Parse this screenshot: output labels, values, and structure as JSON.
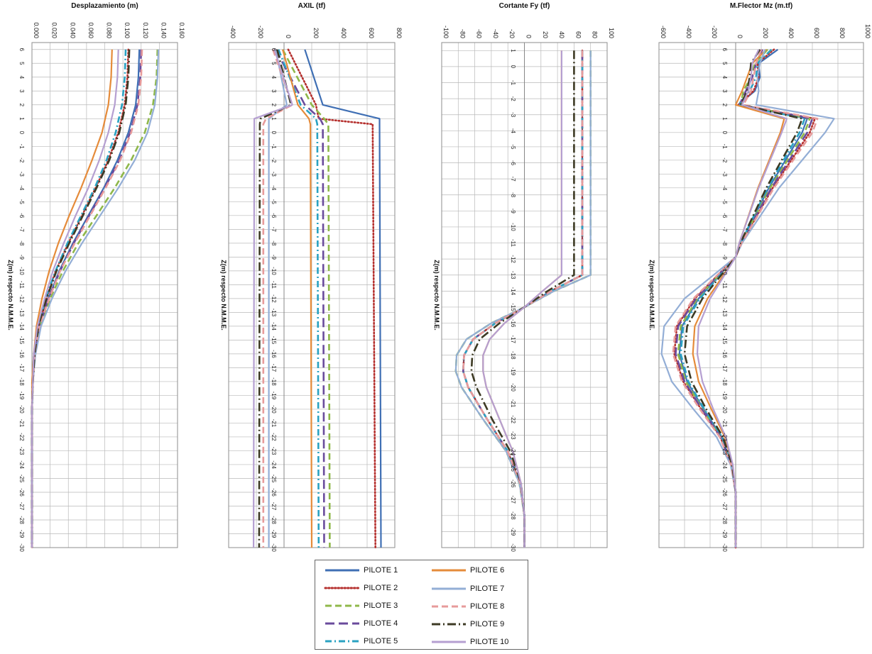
{
  "axis_label_z": "Z(m) respecto N.M.M.E.",
  "chart_data": [
    {
      "type": "line",
      "title": "Desplazamiento (m)",
      "xlabel": "Desplazamiento (m)",
      "ylabel": "Z(m) respecto N.M.M.E.",
      "xlim": [
        0,
        0.16
      ],
      "xticks": [
        "0.000",
        "0.020",
        "0.040",
        "0.060",
        "0.080",
        "0.100",
        "0.120",
        "0.140",
        "0.160"
      ],
      "z": [
        6,
        4,
        2,
        0,
        -2,
        -4,
        -6,
        -8,
        -10,
        -12,
        -14,
        -16,
        -18,
        -20,
        -24,
        -30
      ],
      "series": [
        {
          "name": "PILOTE 1",
          "values": [
            0.118,
            0.117,
            0.114,
            0.106,
            0.094,
            0.079,
            0.062,
            0.045,
            0.03,
            0.018,
            0.008,
            0.003,
            0.001,
            0.0,
            0.0,
            0.0
          ]
        },
        {
          "name": "PILOTE 2",
          "values": [
            0.106,
            0.105,
            0.102,
            0.095,
            0.084,
            0.07,
            0.055,
            0.04,
            0.026,
            0.016,
            0.007,
            0.003,
            0.001,
            0.0,
            0.0,
            0.0
          ]
        },
        {
          "name": "PILOTE 3",
          "values": [
            0.138,
            0.137,
            0.133,
            0.124,
            0.109,
            0.091,
            0.071,
            0.051,
            0.034,
            0.02,
            0.009,
            0.003,
            0.001,
            0.0,
            0.0,
            0.0
          ]
        },
        {
          "name": "PILOTE 4",
          "values": [
            0.12,
            0.119,
            0.116,
            0.108,
            0.096,
            0.08,
            0.063,
            0.046,
            0.031,
            0.018,
            0.008,
            0.003,
            0.001,
            0.0,
            0.0,
            0.0
          ]
        },
        {
          "name": "PILOTE 5",
          "values": [
            0.103,
            0.102,
            0.099,
            0.092,
            0.082,
            0.069,
            0.054,
            0.039,
            0.026,
            0.015,
            0.007,
            0.002,
            0.001,
            0.0,
            0.0,
            0.0
          ]
        },
        {
          "name": "PILOTE 6",
          "values": [
            0.088,
            0.087,
            0.084,
            0.077,
            0.066,
            0.054,
            0.041,
            0.029,
            0.019,
            0.011,
            0.005,
            0.002,
            0.0,
            0.0,
            0.0,
            0.0
          ]
        },
        {
          "name": "PILOTE 7",
          "values": [
            0.139,
            0.138,
            0.135,
            0.127,
            0.113,
            0.095,
            0.075,
            0.055,
            0.037,
            0.022,
            0.01,
            0.004,
            0.001,
            0.0,
            0.0,
            0.0
          ]
        },
        {
          "name": "PILOTE 8",
          "values": [
            0.121,
            0.12,
            0.117,
            0.109,
            0.097,
            0.081,
            0.064,
            0.047,
            0.031,
            0.019,
            0.008,
            0.003,
            0.001,
            0.0,
            0.0,
            0.0
          ]
        },
        {
          "name": "PILOTE 9",
          "values": [
            0.107,
            0.106,
            0.103,
            0.096,
            0.085,
            0.071,
            0.056,
            0.041,
            0.027,
            0.016,
            0.007,
            0.003,
            0.001,
            0.0,
            0.0,
            0.0
          ]
        },
        {
          "name": "PILOTE 10",
          "values": [
            0.095,
            0.094,
            0.091,
            0.084,
            0.074,
            0.062,
            0.048,
            0.035,
            0.023,
            0.014,
            0.006,
            0.002,
            0.001,
            0.0,
            0.0,
            0.0
          ]
        }
      ]
    },
    {
      "type": "line",
      "title": "AXIL (tf)",
      "xlabel": "AXIL (tf)",
      "ylabel": "Z(m) respecto N.M.M.E.",
      "xlim": [
        -400,
        800
      ],
      "xticks": [
        "-400",
        "-200",
        "0",
        "200",
        "400",
        "600",
        "800"
      ],
      "z": [
        6,
        2,
        1,
        0.6,
        -30
      ],
      "series": [
        {
          "name": "PILOTE 1",
          "values": [
            150,
            280,
            690,
            690,
            700
          ]
        },
        {
          "name": "PILOTE 2",
          "values": [
            30,
            230,
            250,
            640,
            660
          ]
        },
        {
          "name": "PILOTE 3",
          "values": [
            -10,
            200,
            290,
            320,
            330
          ]
        },
        {
          "name": "PILOTE 4",
          "values": [
            -60,
            150,
            260,
            280,
            290
          ]
        },
        {
          "name": "PILOTE 5",
          "values": [
            -40,
            120,
            230,
            240,
            250
          ]
        },
        {
          "name": "PILOTE 6",
          "values": [
            -10,
            100,
            180,
            190,
            200
          ]
        },
        {
          "name": "PILOTE 7",
          "values": [
            -60,
            20,
            -110,
            -110,
            -110
          ]
        },
        {
          "name": "PILOTE 8",
          "values": [
            -80,
            60,
            -130,
            -150,
            -150
          ]
        },
        {
          "name": "PILOTE 9",
          "values": [
            -50,
            50,
            -170,
            -175,
            -180
          ]
        },
        {
          "name": "PILOTE 10",
          "values": [
            -70,
            60,
            -215,
            -215,
            -220
          ]
        }
      ]
    },
    {
      "type": "line",
      "title": "Cortante Fy (tf)",
      "xlabel": "Cortante Fy (tf)",
      "ylabel": "Z(m) respecto N.M.M.E.",
      "xlim": [
        -100,
        100
      ],
      "xticks": [
        "-100",
        "-80",
        "-60",
        "-40",
        "-20",
        "0",
        "20",
        "40",
        "60",
        "80",
        "100"
      ],
      "zticks": [
        "1",
        "0",
        "-1",
        "-2",
        "-3",
        "-4",
        "-5",
        "-6",
        "-7",
        "-8",
        "-9",
        "-10",
        "-11",
        "-12",
        "-13",
        "-14",
        "-15",
        "-16",
        "-17",
        "-18",
        "-19",
        "-20",
        "-21",
        "-22",
        "-23",
        "-24",
        "-25",
        "-26",
        "-27",
        "-28",
        "-29",
        "-30"
      ],
      "z": [
        1,
        -13,
        -14,
        -15,
        -16,
        -17,
        -18,
        -19,
        -20,
        -22,
        -24,
        -26,
        -28,
        -30
      ],
      "series": [
        {
          "name": "PILOTE 1",
          "values": [
            70,
            70,
            32,
            0,
            -35,
            -62,
            -73,
            -74,
            -68,
            -45,
            -20,
            -5,
            0,
            0
          ]
        },
        {
          "name": "PILOTE 2",
          "values": [
            70,
            70,
            32,
            0,
            -35,
            -62,
            -73,
            -74,
            -68,
            -45,
            -20,
            -5,
            0,
            0
          ]
        },
        {
          "name": "PILOTE 3",
          "values": [
            80,
            80,
            36,
            0,
            -40,
            -70,
            -82,
            -83,
            -76,
            -50,
            -22,
            -6,
            0,
            0
          ]
        },
        {
          "name": "PILOTE 4",
          "values": [
            70,
            70,
            32,
            0,
            -35,
            -62,
            -73,
            -74,
            -68,
            -45,
            -20,
            -5,
            0,
            0
          ]
        },
        {
          "name": "PILOTE 5",
          "values": [
            70,
            70,
            32,
            0,
            -35,
            -62,
            -73,
            -74,
            -68,
            -45,
            -20,
            -5,
            0,
            0
          ]
        },
        {
          "name": "PILOTE 6",
          "values": [
            45,
            45,
            22,
            0,
            -24,
            -42,
            -50,
            -50,
            -46,
            -30,
            -14,
            -4,
            0,
            0
          ]
        },
        {
          "name": "PILOTE 7",
          "values": [
            80,
            80,
            36,
            0,
            -40,
            -70,
            -82,
            -83,
            -76,
            -50,
            -22,
            -6,
            0,
            0
          ]
        },
        {
          "name": "PILOTE 8",
          "values": [
            70,
            70,
            32,
            0,
            -35,
            -62,
            -73,
            -74,
            -68,
            -45,
            -20,
            -5,
            0,
            0
          ]
        },
        {
          "name": "PILOTE 9",
          "values": [
            60,
            60,
            28,
            0,
            -30,
            -54,
            -63,
            -64,
            -58,
            -39,
            -17,
            -4,
            0,
            0
          ]
        },
        {
          "name": "PILOTE 10",
          "values": [
            45,
            45,
            22,
            0,
            -24,
            -42,
            -50,
            -50,
            -46,
            -30,
            -14,
            -4,
            0,
            0
          ]
        }
      ]
    },
    {
      "type": "line",
      "title": "M.Flector Mz (m.tf)",
      "xlabel": "M.Flector Mz (m.tf)",
      "ylabel": "Z(m) respecto N.M.M.E.",
      "xlim": [
        -600,
        1000
      ],
      "xticks": [
        "-600",
        "-400",
        "-200",
        "0",
        "200",
        "400",
        "600",
        "800",
        "1000"
      ],
      "z": [
        6,
        5,
        4,
        3,
        2,
        1,
        0,
        -4,
        -8,
        -9,
        -12,
        -14,
        -16,
        -18,
        -20,
        -22,
        -24,
        -26,
        -28,
        -30
      ],
      "series": [
        {
          "name": "PILOTE 1",
          "values": [
            330,
            180,
            190,
            150,
            20,
            560,
            520,
            260,
            40,
            0,
            -290,
            -420,
            -440,
            -380,
            -250,
            -110,
            -30,
            0,
            0,
            0
          ]
        },
        {
          "name": "PILOTE 2",
          "values": [
            300,
            170,
            180,
            140,
            20,
            620,
            580,
            290,
            45,
            0,
            -320,
            -460,
            -480,
            -410,
            -270,
            -120,
            -35,
            0,
            0,
            0
          ]
        },
        {
          "name": "PILOTE 3",
          "values": [
            250,
            150,
            120,
            60,
            40,
            580,
            540,
            270,
            40,
            0,
            -300,
            -430,
            -450,
            -390,
            -260,
            -115,
            -32,
            0,
            0,
            0
          ]
        },
        {
          "name": "PILOTE 4",
          "values": [
            210,
            160,
            130,
            80,
            30,
            600,
            560,
            280,
            42,
            0,
            -310,
            -450,
            -470,
            -400,
            -265,
            -118,
            -34,
            0,
            0,
            0
          ]
        },
        {
          "name": "PILOTE 5",
          "values": [
            280,
            170,
            160,
            110,
            20,
            540,
            500,
            250,
            38,
            0,
            -280,
            -410,
            -430,
            -370,
            -245,
            -108,
            -30,
            0,
            0,
            0
          ]
        },
        {
          "name": "PILOTE 6",
          "values": [
            240,
            130,
            90,
            50,
            0,
            380,
            350,
            175,
            28,
            0,
            -220,
            -320,
            -335,
            -290,
            -190,
            -85,
            -24,
            0,
            0,
            0
          ]
        },
        {
          "name": "PILOTE 7",
          "values": [
            230,
            190,
            170,
            180,
            160,
            770,
            700,
            340,
            50,
            0,
            -400,
            -560,
            -580,
            -500,
            -330,
            -150,
            -40,
            0,
            0,
            0
          ]
        },
        {
          "name": "PILOTE 8",
          "values": [
            200,
            160,
            140,
            120,
            60,
            640,
            600,
            300,
            45,
            0,
            -330,
            -470,
            -490,
            -420,
            -280,
            -125,
            -35,
            0,
            0,
            0
          ]
        },
        {
          "name": "PILOTE 9",
          "values": [
            190,
            120,
            110,
            90,
            40,
            520,
            480,
            240,
            36,
            0,
            -260,
            -380,
            -400,
            -345,
            -230,
            -100,
            -28,
            0,
            0,
            0
          ]
        },
        {
          "name": "PILOTE 10",
          "values": [
            180,
            130,
            120,
            100,
            50,
            400,
            360,
            180,
            28,
            0,
            -200,
            -290,
            -300,
            -260,
            -175,
            -78,
            -22,
            0,
            0,
            0
          ]
        }
      ]
    }
  ],
  "legend": [
    {
      "name": "PILOTE 1",
      "color": "#3f6fb4",
      "dash": "solid"
    },
    {
      "name": "PILOTE 2",
      "color": "#b5302e",
      "dash": "dot"
    },
    {
      "name": "PILOTE 3",
      "color": "#8fb84a",
      "dash": "dash"
    },
    {
      "name": "PILOTE 4",
      "color": "#6a4b9c",
      "dash": "longdash"
    },
    {
      "name": "PILOTE 5",
      "color": "#2aa2c2",
      "dash": "dashdot"
    },
    {
      "name": "PILOTE 6",
      "color": "#e58b3a",
      "dash": "solid"
    },
    {
      "name": "PILOTE 7",
      "color": "#93aed6",
      "dash": "solid"
    },
    {
      "name": "PILOTE 8",
      "color": "#e79b9b",
      "dash": "dash"
    },
    {
      "name": "PILOTE 9",
      "color": "#3d3a24",
      "dash": "longdashdot"
    },
    {
      "name": "PILOTE 10",
      "color": "#b59fd1",
      "dash": "solid"
    }
  ]
}
